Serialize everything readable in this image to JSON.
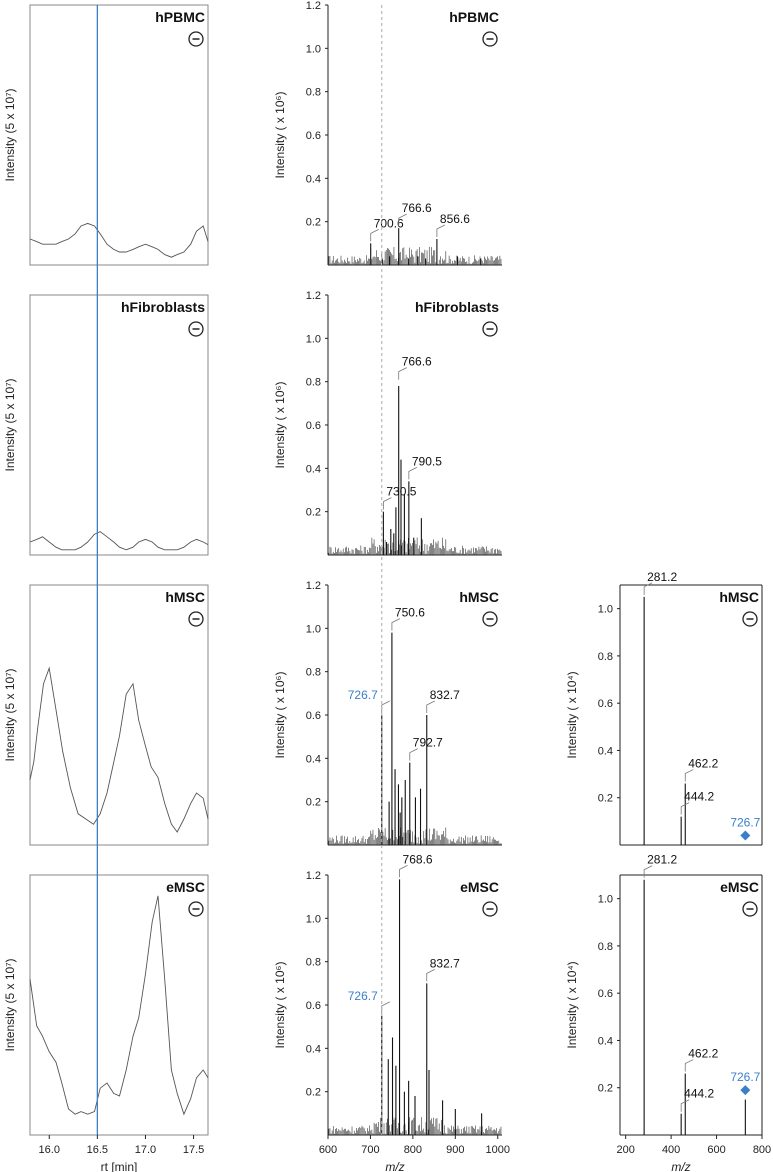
{
  "figure": {
    "colors": {
      "highlight": "#3a7fc8",
      "line": "#222222",
      "trace": "#555555",
      "frame": "#888888",
      "rule": "#aaaaaa"
    },
    "polarity_symbol": "−",
    "y_labels": {
      "xic": "Intensity (5 x 10⁷)",
      "ms1": "Intensity ( x 10⁶)",
      "ms2": "Intensity ( x 10⁴)"
    },
    "x_labels": {
      "xic": "rt [min]",
      "ms1": "m/z",
      "ms2": "m/z"
    }
  },
  "chart_data": [
    {
      "type": "line",
      "panel": "xic",
      "row": 0,
      "title": "hPBMC",
      "x_range": [
        15.8,
        17.65
      ],
      "y_range": [
        0,
        1
      ],
      "x": [
        15.8,
        15.87,
        15.93,
        16.0,
        16.07,
        16.13,
        16.2,
        16.27,
        16.33,
        16.4,
        16.47,
        16.53,
        16.6,
        16.67,
        16.73,
        16.8,
        16.87,
        16.93,
        17.0,
        17.07,
        17.13,
        17.2,
        17.27,
        17.33,
        17.4,
        17.47,
        17.53,
        17.6,
        17.65
      ],
      "y": [
        0.1,
        0.09,
        0.08,
        0.08,
        0.08,
        0.09,
        0.1,
        0.12,
        0.15,
        0.16,
        0.15,
        0.12,
        0.08,
        0.06,
        0.05,
        0.05,
        0.06,
        0.07,
        0.08,
        0.07,
        0.06,
        0.04,
        0.03,
        0.04,
        0.05,
        0.08,
        0.13,
        0.15,
        0.09
      ]
    },
    {
      "type": "line",
      "panel": "xic",
      "row": 1,
      "title": "hFibroblasts",
      "x_range": [
        15.8,
        17.65
      ],
      "y_range": [
        0,
        1
      ],
      "x": [
        15.8,
        15.87,
        15.93,
        16.0,
        16.07,
        16.13,
        16.2,
        16.27,
        16.33,
        16.4,
        16.47,
        16.53,
        16.6,
        16.67,
        16.73,
        16.8,
        16.87,
        16.93,
        17.0,
        17.07,
        17.13,
        17.2,
        17.27,
        17.33,
        17.4,
        17.47,
        17.53,
        17.6,
        17.65
      ],
      "y": [
        0.05,
        0.06,
        0.07,
        0.05,
        0.03,
        0.02,
        0.02,
        0.02,
        0.03,
        0.05,
        0.08,
        0.09,
        0.07,
        0.05,
        0.03,
        0.02,
        0.03,
        0.05,
        0.06,
        0.05,
        0.03,
        0.02,
        0.02,
        0.02,
        0.03,
        0.05,
        0.06,
        0.05,
        0.04
      ]
    },
    {
      "type": "line",
      "panel": "xic",
      "row": 2,
      "title": "hMSC",
      "x_range": [
        15.8,
        17.65
      ],
      "y_range": [
        0,
        1
      ],
      "x": [
        15.8,
        15.84,
        15.88,
        15.94,
        16.0,
        16.07,
        16.14,
        16.22,
        16.3,
        16.38,
        16.46,
        16.53,
        16.6,
        16.66,
        16.73,
        16.8,
        16.87,
        16.93,
        17.0,
        17.06,
        17.13,
        17.2,
        17.27,
        17.33,
        17.4,
        17.47,
        17.53,
        17.6,
        17.65
      ],
      "y": [
        0.25,
        0.32,
        0.45,
        0.62,
        0.68,
        0.52,
        0.36,
        0.22,
        0.12,
        0.1,
        0.08,
        0.12,
        0.2,
        0.3,
        0.42,
        0.58,
        0.62,
        0.48,
        0.38,
        0.3,
        0.26,
        0.16,
        0.08,
        0.05,
        0.1,
        0.16,
        0.2,
        0.18,
        0.1
      ]
    },
    {
      "type": "line",
      "panel": "xic",
      "row": 3,
      "title": "eMSC",
      "x_range": [
        15.8,
        17.65
      ],
      "y_range": [
        0,
        1
      ],
      "x": [
        15.8,
        15.87,
        15.93,
        16.0,
        16.07,
        16.13,
        16.2,
        16.27,
        16.33,
        16.4,
        16.47,
        16.53,
        16.6,
        16.67,
        16.73,
        16.8,
        16.87,
        16.93,
        17.0,
        17.07,
        17.13,
        17.2,
        17.27,
        17.33,
        17.4,
        17.47,
        17.53,
        17.6,
        17.65
      ],
      "y": [
        0.6,
        0.42,
        0.38,
        0.32,
        0.28,
        0.2,
        0.1,
        0.08,
        0.09,
        0.08,
        0.09,
        0.18,
        0.2,
        0.16,
        0.15,
        0.25,
        0.38,
        0.45,
        0.62,
        0.82,
        0.92,
        0.6,
        0.25,
        0.16,
        0.08,
        0.14,
        0.22,
        0.25,
        0.22
      ]
    },
    {
      "type": "bar",
      "panel": "ms1",
      "row": 0,
      "title": "hPBMC",
      "x_range": [
        600,
        1010
      ],
      "y_range": [
        0,
        1.2
      ],
      "peaks": [
        [
          700.6,
          0.1
        ],
        [
          766.6,
          0.17
        ],
        [
          856.6,
          0.12
        ],
        [
          728,
          0.03
        ],
        [
          745,
          0.04
        ],
        [
          790,
          0.03
        ],
        [
          812,
          0.04
        ],
        [
          830,
          0.03
        ],
        [
          905,
          0.04
        ],
        [
          960,
          0.03
        ]
      ],
      "labels": [
        {
          "text": "700.6",
          "x": 700.6,
          "y": 0.1
        },
        {
          "text": "766.6",
          "x": 766.6,
          "y": 0.17
        },
        {
          "text": "856.6",
          "x": 856.6,
          "y": 0.12
        }
      ]
    },
    {
      "type": "bar",
      "panel": "ms1",
      "row": 1,
      "title": "hFibroblasts",
      "x_range": [
        600,
        1010
      ],
      "y_range": [
        0,
        1.2
      ],
      "peaks": [
        [
          730.5,
          0.2
        ],
        [
          766.6,
          0.78
        ],
        [
          790.5,
          0.34
        ],
        [
          772,
          0.44
        ],
        [
          760,
          0.22
        ],
        [
          780,
          0.28
        ],
        [
          748,
          0.12
        ],
        [
          820,
          0.17
        ],
        [
          802,
          0.08
        ],
        [
          738,
          0.06
        ],
        [
          755,
          0.1
        ]
      ],
      "labels": [
        {
          "text": "730.5",
          "x": 730.5,
          "y": 0.2
        },
        {
          "text": "766.6",
          "x": 766.6,
          "y": 0.8
        },
        {
          "text": "790.5",
          "x": 790.5,
          "y": 0.34
        }
      ]
    },
    {
      "type": "bar",
      "panel": "ms1",
      "row": 2,
      "title": "hMSC",
      "x_range": [
        600,
        1010
      ],
      "y_range": [
        0,
        1.2
      ],
      "peaks": [
        [
          726.7,
          0.6
        ],
        [
          750.6,
          0.98
        ],
        [
          792.7,
          0.38
        ],
        [
          832.7,
          0.6
        ],
        [
          758,
          0.35
        ],
        [
          766,
          0.28
        ],
        [
          774,
          0.22
        ],
        [
          782,
          0.3
        ],
        [
          806,
          0.22
        ],
        [
          818,
          0.26
        ],
        [
          744,
          0.2
        ],
        [
          770,
          0.15
        ]
      ],
      "labels": [
        {
          "text": "726.7",
          "x": 726.7,
          "y": 0.6,
          "highlight": true
        },
        {
          "text": "750.6",
          "x": 750.6,
          "y": 0.98
        },
        {
          "text": "792.7",
          "x": 792.7,
          "y": 0.38
        },
        {
          "text": "832.7",
          "x": 832.7,
          "y": 0.6
        }
      ]
    },
    {
      "type": "bar",
      "panel": "ms1",
      "row": 3,
      "title": "eMSC",
      "x_range": [
        600,
        1010
      ],
      "y_range": [
        0,
        1.2
      ],
      "peaks": [
        [
          726.7,
          0.55
        ],
        [
          768.6,
          1.18
        ],
        [
          832.7,
          0.7
        ],
        [
          752,
          0.45
        ],
        [
          742,
          0.35
        ],
        [
          760,
          0.32
        ],
        [
          780,
          0.2
        ],
        [
          790,
          0.25
        ],
        [
          805,
          0.18
        ],
        [
          838,
          0.3
        ],
        [
          870,
          0.16
        ],
        [
          900,
          0.12
        ],
        [
          962,
          0.1
        ]
      ],
      "labels": [
        {
          "text": "726.7",
          "x": 726.7,
          "y": 0.55,
          "highlight": true
        },
        {
          "text": "768.6",
          "x": 768.6,
          "y": 1.18
        },
        {
          "text": "832.7",
          "x": 832.7,
          "y": 0.7
        }
      ]
    },
    {
      "type": "bar",
      "panel": "ms2",
      "row": 2,
      "title": "hMSC",
      "x_range": [
        175,
        800
      ],
      "y_range": [
        0,
        1.1
      ],
      "peaks": [
        [
          281.2,
          1.05
        ],
        [
          444.2,
          0.12
        ],
        [
          462.2,
          0.26
        ]
      ],
      "labels": [
        {
          "text": "281.2",
          "x": 281.2,
          "y": 1.05
        },
        {
          "text": "444.2",
          "x": 444.2,
          "y": 0.12
        },
        {
          "text": "462.2",
          "x": 462.2,
          "y": 0.26
        }
      ],
      "precursor": {
        "text": "726.7",
        "x": 726.7,
        "y": 0.04
      }
    },
    {
      "type": "bar",
      "panel": "ms2",
      "row": 3,
      "title": "eMSC",
      "x_range": [
        175,
        800
      ],
      "y_range": [
        0,
        1.1
      ],
      "peaks": [
        [
          281.2,
          1.08
        ],
        [
          444.2,
          0.09
        ],
        [
          462.2,
          0.26
        ],
        [
          726.7,
          0.15
        ]
      ],
      "labels": [
        {
          "text": "281.2",
          "x": 281.2,
          "y": 1.08
        },
        {
          "text": "444.2",
          "x": 444.2,
          "y": 0.09
        },
        {
          "text": "462.2",
          "x": 462.2,
          "y": 0.26
        }
      ],
      "precursor": {
        "text": "726.7",
        "x": 726.7,
        "y": 0.19
      }
    }
  ],
  "axes": {
    "xic_ticks": [
      16.0,
      16.5,
      17.0,
      17.5
    ],
    "ms1_xticks": [
      600,
      700,
      800,
      900,
      1000
    ],
    "ms1_yticks": [
      0.2,
      0.4,
      0.6,
      0.8,
      1.0,
      1.2
    ],
    "ms2_xticks": [
      200,
      400,
      600,
      800
    ],
    "ms2_yticks": [
      0.2,
      0.4,
      0.6,
      0.8,
      1.0
    ],
    "xic_tick_labels": [
      "16.0",
      "16.5",
      "17.0",
      "17.5"
    ],
    "ms1_xtick_labels": [
      "600",
      "700",
      "800",
      "900",
      "1000"
    ],
    "ms1_ytick_labels": [
      "0.2",
      "0.4",
      "0.6",
      "0.8",
      "1.0",
      "1.2"
    ],
    "ms2_xtick_labels": [
      "200",
      "400",
      "600",
      "800"
    ],
    "ms2_ytick_labels": [
      "0.2",
      "0.4",
      "0.6",
      "0.8",
      "1.0"
    ],
    "xic_marker_rt": 16.5,
    "ms1_marker_mz": 726.7
  }
}
